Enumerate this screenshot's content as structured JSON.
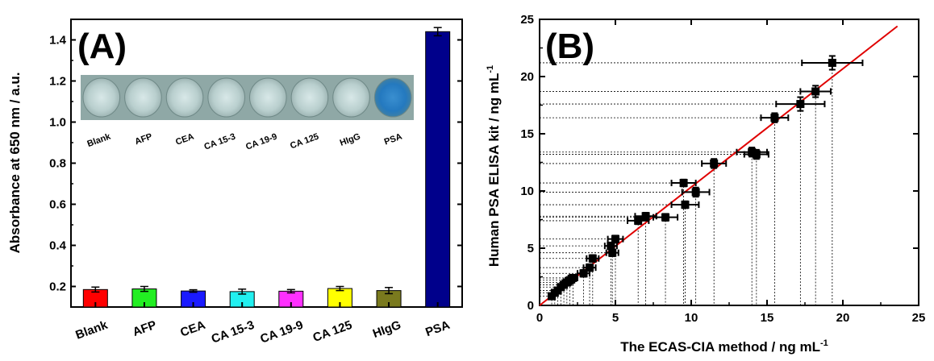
{
  "chart_data": [
    {
      "type": "bar",
      "panel_label": "(A)",
      "categories": [
        "Blank",
        "AFP",
        "CEA",
        "CA 15-3",
        "CA 19-9",
        "CA 125",
        "HIgG",
        "PSA"
      ],
      "values": [
        0.185,
        0.188,
        0.178,
        0.175,
        0.177,
        0.19,
        0.18,
        1.44
      ],
      "errors": [
        0.012,
        0.012,
        0.006,
        0.012,
        0.008,
        0.01,
        0.015,
        0.02
      ],
      "colors": [
        "#ff0000",
        "#22ee22",
        "#1a1aff",
        "#22f0f0",
        "#ff30ff",
        "#ffff00",
        "#7a7a1e",
        "#00008b"
      ],
      "ylabel": "Absorbance at 650 nm / a.u.",
      "xlabel": "",
      "ylim": [
        0.1,
        1.5
      ],
      "yticks": [
        "0.2",
        "0.4",
        "0.6",
        "0.8",
        "1.0",
        "1.2",
        "1.4"
      ],
      "inset": {
        "labels": [
          "Blank",
          "AFP",
          "CEA",
          "CA 15-3",
          "CA 19-9",
          "CA 125",
          "HIgG",
          "PSA"
        ],
        "highlight": "PSA"
      }
    },
    {
      "type": "scatter",
      "panel_label": "(B)",
      "xlabel": "The ECAS-CIA method / ng mL",
      "xlabel_sup": "-1",
      "ylabel": "Human PSA ELISA kit / ng mL",
      "ylabel_sup": "-1",
      "xlim": [
        0,
        25
      ],
      "ylim": [
        0,
        25
      ],
      "xticks": [
        "0",
        "5",
        "10",
        "15",
        "20",
        "25"
      ],
      "yticks": [
        "0",
        "5",
        "10",
        "15",
        "20",
        "25"
      ],
      "points": [
        {
          "x": 0.8,
          "y": 0.8,
          "xerr": 0.2,
          "yerr": 0.2
        },
        {
          "x": 1.0,
          "y": 1.1,
          "xerr": 0.2,
          "yerr": 0.2
        },
        {
          "x": 1.2,
          "y": 1.3,
          "xerr": 0.2,
          "yerr": 0.2
        },
        {
          "x": 1.4,
          "y": 1.6,
          "xerr": 0.2,
          "yerr": 0.2
        },
        {
          "x": 1.6,
          "y": 1.8,
          "xerr": 0.2,
          "yerr": 0.2
        },
        {
          "x": 1.8,
          "y": 2.0,
          "xerr": 0.3,
          "yerr": 0.2
        },
        {
          "x": 2.0,
          "y": 2.2,
          "xerr": 0.3,
          "yerr": 0.2
        },
        {
          "x": 2.2,
          "y": 2.4,
          "xerr": 0.3,
          "yerr": 0.2
        },
        {
          "x": 2.9,
          "y": 2.8,
          "xerr": 0.4,
          "yerr": 0.3
        },
        {
          "x": 3.3,
          "y": 3.3,
          "xerr": 0.4,
          "yerr": 0.3
        },
        {
          "x": 3.5,
          "y": 4.1,
          "xerr": 0.4,
          "yerr": 0.3
        },
        {
          "x": 4.8,
          "y": 4.6,
          "xerr": 0.4,
          "yerr": 0.3
        },
        {
          "x": 4.7,
          "y": 5.2,
          "xerr": 0.4,
          "yerr": 0.3
        },
        {
          "x": 5.0,
          "y": 5.8,
          "xerr": 0.5,
          "yerr": 0.3
        },
        {
          "x": 6.5,
          "y": 7.4,
          "xerr": 0.7,
          "yerr": 0.3
        },
        {
          "x": 7.0,
          "y": 7.8,
          "xerr": 0.7,
          "yerr": 0.3
        },
        {
          "x": 8.3,
          "y": 7.7,
          "xerr": 0.8,
          "yerr": 0.3
        },
        {
          "x": 9.6,
          "y": 8.8,
          "xerr": 0.9,
          "yerr": 0.3
        },
        {
          "x": 9.5,
          "y": 10.7,
          "xerr": 0.8,
          "yerr": 0.3
        },
        {
          "x": 10.3,
          "y": 9.9,
          "xerr": 0.9,
          "yerr": 0.4
        },
        {
          "x": 11.5,
          "y": 12.4,
          "xerr": 0.8,
          "yerr": 0.4
        },
        {
          "x": 14.0,
          "y": 13.4,
          "xerr": 1.0,
          "yerr": 0.4
        },
        {
          "x": 14.3,
          "y": 13.2,
          "xerr": 0.8,
          "yerr": 0.4
        },
        {
          "x": 15.5,
          "y": 16.4,
          "xerr": 0.9,
          "yerr": 0.4
        },
        {
          "x": 17.2,
          "y": 17.6,
          "xerr": 1.6,
          "yerr": 0.6
        },
        {
          "x": 18.2,
          "y": 18.7,
          "xerr": 1.0,
          "yerr": 0.5
        },
        {
          "x": 19.3,
          "y": 21.2,
          "xerr": 2.0,
          "yerr": 0.6
        }
      ],
      "fit_line": {
        "x": [
          0,
          23.6
        ],
        "y": [
          0,
          24.4
        ],
        "color": "#e00000"
      },
      "dropline_style": "dotted"
    }
  ]
}
